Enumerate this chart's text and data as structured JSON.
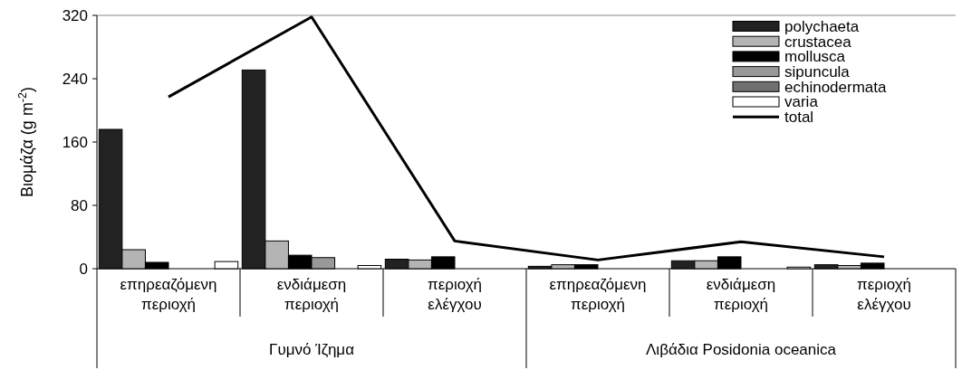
{
  "chart_data": {
    "type": "bar",
    "ylabel": "Βιομάζα (g m$^{-2}$)",
    "categories": [
      "επηρεαζόμενη περιοχή",
      "ενδιάμεση περιοχή",
      "περιοχή ελέγχου",
      "επηρεαζόμενη περιοχή",
      "ενδιάμεση περιοχή",
      "περιοχή ελέγχου"
    ],
    "annotations": [
      "Γυμνό Ίζημα",
      "Λιβάδια Posidonia oceanica"
    ],
    "series": [
      {
        "name": "polychaeta",
        "color": "#222222",
        "values": [
          176,
          251,
          12,
          3,
          10,
          5
        ]
      },
      {
        "name": "crustacea",
        "color": "#b4b4b4",
        "values": [
          24,
          35,
          11,
          5,
          10,
          4
        ]
      },
      {
        "name": "mollusca",
        "color": "#000000",
        "values": [
          8,
          17,
          15,
          5,
          15,
          7
        ]
      },
      {
        "name": "sipuncula",
        "color": "#999999",
        "values": [
          0,
          14,
          0,
          0,
          0,
          0
        ]
      },
      {
        "name": "echinodermata",
        "color": "#707070",
        "values": [
          0,
          0,
          0,
          0,
          0,
          0
        ]
      },
      {
        "name": "varia",
        "color": "#ffffff",
        "values": [
          9,
          4,
          0,
          0,
          2,
          0
        ]
      },
      {
        "name": "total",
        "type": "line",
        "color": "#000000",
        "values": [
          217,
          318,
          35,
          11,
          34,
          15
        ]
      }
    ],
    "ylim": [
      0,
      320
    ],
    "yticks": [
      0,
      80,
      160,
      240,
      320
    ],
    "legend": "top right"
  }
}
